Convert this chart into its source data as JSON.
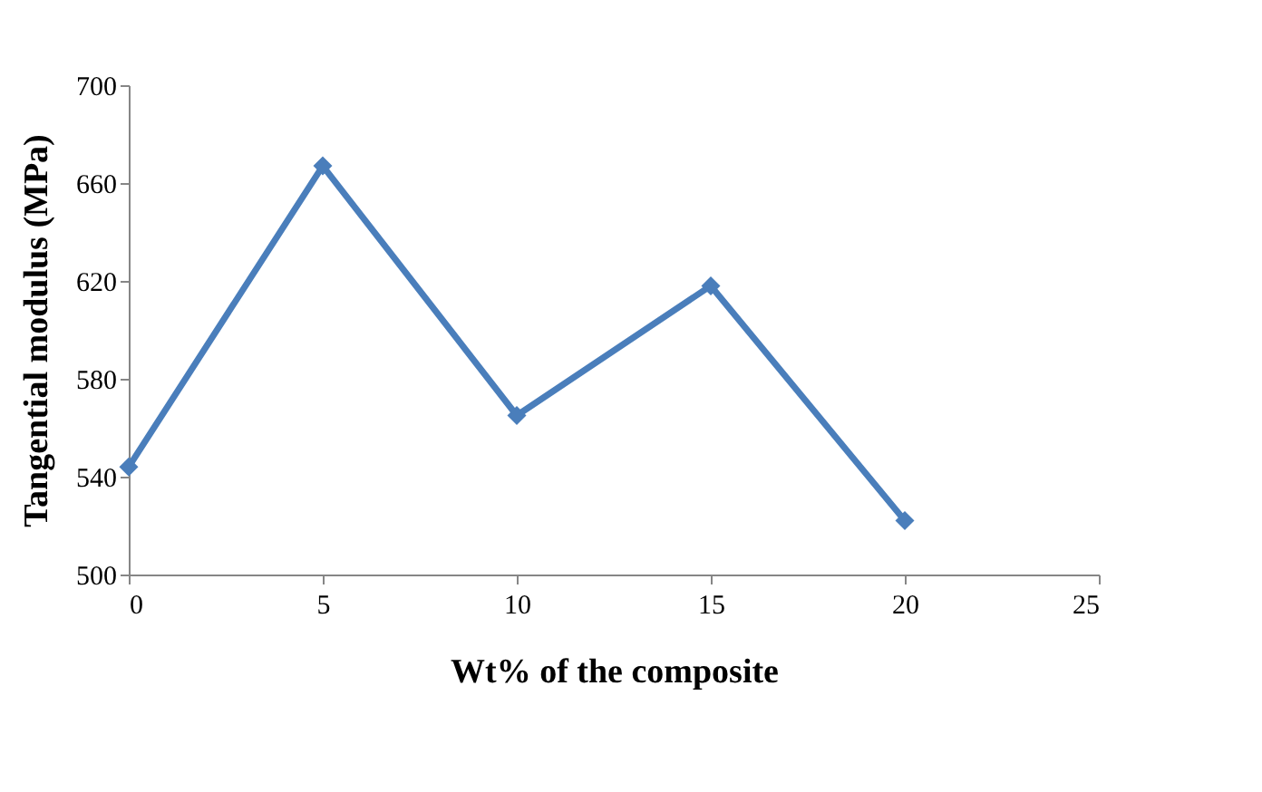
{
  "chart_data": {
    "type": "line",
    "xlabel": "Wt%  of the composite",
    "ylabel": "Tangential modulus (MPa)",
    "x": [
      0,
      5,
      10,
      15,
      20
    ],
    "series": [
      {
        "color": "#4a7ebb",
        "values": [
          544,
          667,
          565,
          618,
          522
        ]
      }
    ],
    "xlim": [
      0,
      25
    ],
    "xticks": [
      0,
      5,
      10,
      15,
      20,
      25
    ],
    "ylim": [
      500,
      700
    ],
    "yticks": [
      500,
      540,
      580,
      620,
      660,
      700
    ],
    "grid": false,
    "legend": false,
    "marker": "diamond",
    "line_style": "solid"
  }
}
